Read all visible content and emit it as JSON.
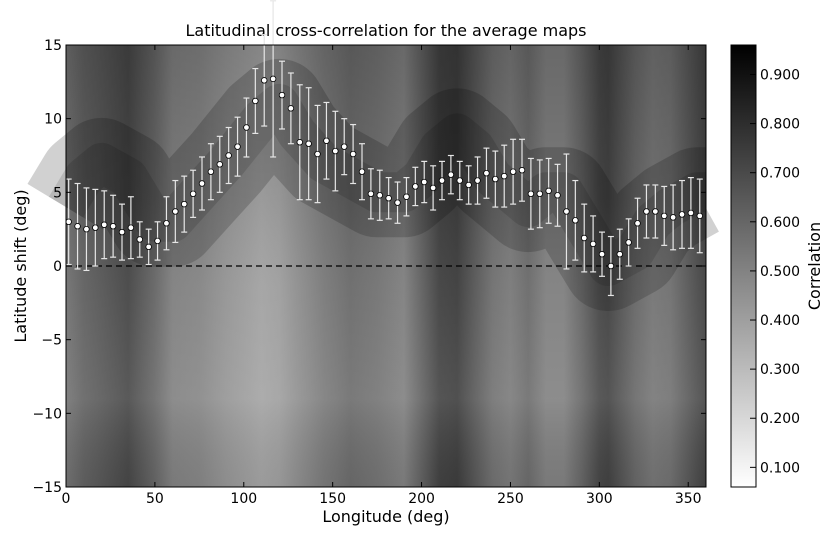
{
  "chart_data": {
    "type": "heatmap",
    "title": "Latitudinal cross-correlation for the average maps",
    "xlabel": "Longitude (deg)",
    "ylabel": "Latitude shift (deg)",
    "xlim": [
      0,
      360
    ],
    "ylim": [
      -15,
      15
    ],
    "xticks": [
      0,
      50,
      100,
      150,
      200,
      250,
      300,
      350
    ],
    "yticks": [
      -15,
      -10,
      -5,
      0,
      5,
      10,
      15
    ],
    "colorbar": {
      "label": "Correlation",
      "range": [
        0.06,
        0.96
      ],
      "ticks": [
        "0.100",
        "0.200",
        "0.300",
        "0.400",
        "0.500",
        "0.600",
        "0.700",
        "0.800",
        "0.900"
      ],
      "colormap": "gray_reversed"
    },
    "reference_line": {
      "y": 0,
      "style": "dashed"
    },
    "background_profile": {
      "longitude": [
        0,
        10,
        20,
        35,
        50,
        60,
        75,
        90,
        110,
        120,
        130,
        145,
        160,
        175,
        190,
        200,
        210,
        220,
        230,
        240,
        250,
        260,
        270,
        280,
        290,
        300,
        305,
        320,
        330,
        340,
        355,
        360
      ],
      "darkness": [
        0.55,
        0.62,
        0.66,
        0.72,
        0.6,
        0.5,
        0.48,
        0.42,
        0.36,
        0.38,
        0.44,
        0.52,
        0.58,
        0.55,
        0.5,
        0.62,
        0.74,
        0.76,
        0.66,
        0.56,
        0.52,
        0.58,
        0.5,
        0.5,
        0.6,
        0.72,
        0.74,
        0.6,
        0.54,
        0.56,
        0.7,
        0.74
      ],
      "peak_latitude": [
        4,
        6,
        7,
        6,
        3,
        3,
        5,
        7,
        10,
        11,
        9,
        7,
        6,
        5,
        5,
        6,
        8,
        9,
        8,
        6,
        5,
        4,
        5,
        5,
        3,
        1,
        0,
        1,
        3,
        4,
        5,
        5
      ]
    },
    "series": [
      {
        "style": "error-bars",
        "x": [
          1.5,
          6.5,
          11.5,
          16.5,
          21.5,
          26.5,
          31.5,
          36.5,
          41.5,
          46.5,
          51.5,
          56.5,
          61.5,
          66.5,
          71.5,
          76.5,
          81.5,
          86.5,
          91.5,
          96.5,
          101.5,
          106.5,
          111.5,
          116.5,
          121.5,
          126.5,
          131.5,
          136.5,
          141.5,
          146.5,
          151.5,
          156.5,
          161.5,
          166.5,
          171.5,
          176.5,
          181.5,
          186.5,
          191.5,
          196.5,
          201.5,
          206.5,
          211.5,
          216.5,
          221.5,
          226.5,
          231.5,
          236.5,
          241.5,
          246.5,
          251.5,
          256.5,
          261.5,
          266.5,
          271.5,
          276.5,
          281.5,
          286.5,
          291.5,
          296.5,
          301.5,
          306.5,
          311.5,
          316.5,
          321.5,
          326.5,
          331.5,
          336.5,
          341.5,
          346.5,
          351.5,
          356.5
        ],
        "y": [
          3.0,
          2.7,
          2.5,
          2.6,
          2.8,
          2.7,
          2.3,
          2.6,
          1.8,
          1.3,
          1.7,
          2.9,
          3.7,
          4.2,
          4.9,
          5.6,
          6.4,
          6.9,
          7.5,
          8.1,
          9.4,
          11.2,
          12.6,
          12.7,
          11.6,
          10.7,
          8.4,
          8.3,
          7.6,
          8.5,
          7.8,
          8.1,
          7.6,
          6.4,
          4.9,
          4.8,
          4.6,
          4.3,
          4.7,
          5.4,
          5.7,
          5.3,
          5.8,
          6.2,
          5.8,
          5.5,
          5.8,
          6.3,
          5.9,
          6.1,
          6.4,
          6.5,
          4.9,
          4.9,
          5.1,
          4.8,
          3.7,
          3.1,
          1.9,
          1.5,
          0.8,
          0.0,
          0.8,
          1.6,
          2.9,
          3.7,
          3.7,
          3.4,
          3.3,
          3.5,
          3.6,
          3.4
        ],
        "yerr": [
          2.9,
          2.9,
          2.8,
          2.6,
          2.3,
          2.1,
          1.9,
          2.1,
          1.2,
          1.2,
          1.3,
          1.8,
          2.1,
          1.9,
          1.6,
          1.8,
          1.9,
          1.9,
          1.9,
          2.0,
          2.0,
          2.2,
          3.1,
          5.3,
          2.3,
          2.4,
          3.9,
          3.8,
          3.3,
          2.6,
          2.7,
          1.9,
          2.0,
          1.9,
          1.7,
          1.7,
          1.4,
          1.4,
          1.3,
          1.3,
          1.4,
          1.5,
          1.3,
          1.3,
          1.3,
          1.3,
          1.6,
          1.7,
          1.9,
          2.1,
          2.2,
          2.1,
          2.4,
          2.3,
          2.2,
          2.1,
          3.9,
          2.7,
          2.3,
          1.9,
          1.5,
          2.0,
          1.7,
          1.6,
          1.7,
          1.8,
          1.8,
          2.0,
          2.2,
          2.3,
          2.4,
          2.5
        ]
      }
    ]
  }
}
